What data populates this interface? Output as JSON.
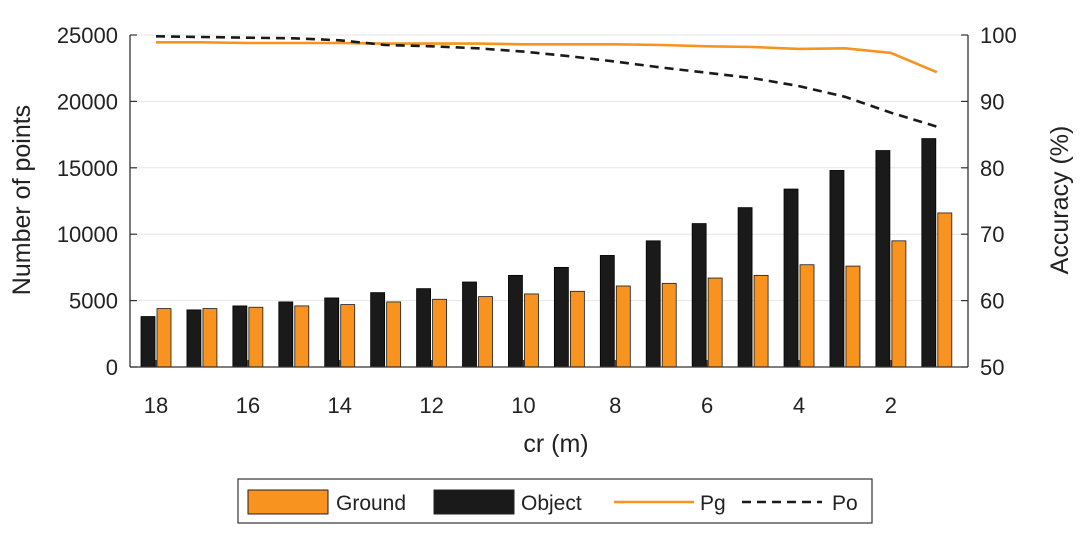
{
  "chart_data": {
    "type": "bar",
    "xlabel": "cr (m)",
    "ylabel_left": "Number of points",
    "ylabel_right": "Accuracy (%)",
    "x": [
      18,
      17,
      16,
      15,
      14,
      13,
      12,
      11,
      10,
      9,
      8,
      7,
      6,
      5,
      4,
      3,
      2,
      1
    ],
    "x_tick_labels": [
      "18",
      "16",
      "14",
      "12",
      "10",
      "8",
      "6",
      "4",
      "2"
    ],
    "x_tick_values": [
      18,
      16,
      14,
      12,
      10,
      8,
      6,
      4,
      2
    ],
    "ylim_left": [
      0,
      25000
    ],
    "yticks_left": [
      "0",
      "5000",
      "10000",
      "15000",
      "20000",
      "25000"
    ],
    "ytick_values_left": [
      0,
      5000,
      10000,
      15000,
      20000,
      25000
    ],
    "ylim_right": [
      50,
      100
    ],
    "yticks_right": [
      "50",
      "60",
      "70",
      "80",
      "90",
      "100"
    ],
    "ytick_values_right": [
      50,
      60,
      70,
      80,
      90,
      100
    ],
    "grid": "horizontal",
    "legend_position": "bottom",
    "colors": {
      "ground": "#f7931e",
      "object": "#1a1a1a",
      "pg": "#f7931e",
      "po": "#1a1a1a",
      "grid": "#e6e6e6",
      "axis": "#333333"
    },
    "series": [
      {
        "name": "Ground",
        "type": "bar",
        "axis": "left",
        "values": [
          4400,
          4400,
          4500,
          4600,
          4700,
          4900,
          5100,
          5300,
          5500,
          5700,
          6100,
          6300,
          6700,
          6900,
          7700,
          7600,
          9500,
          11600
        ]
      },
      {
        "name": "Object",
        "type": "bar",
        "axis": "left",
        "values": [
          3800,
          4300,
          4600,
          4900,
          5200,
          5600,
          5900,
          6400,
          6900,
          7500,
          8400,
          9500,
          10800,
          12000,
          13400,
          14800,
          16300,
          17200
        ]
      },
      {
        "name": "Pg",
        "type": "line",
        "axis": "right",
        "values": [
          98.9,
          98.9,
          98.8,
          98.8,
          98.8,
          98.7,
          98.7,
          98.7,
          98.6,
          98.6,
          98.6,
          98.5,
          98.3,
          98.2,
          97.9,
          98.0,
          97.3,
          94.4
        ]
      },
      {
        "name": "Po",
        "type": "line",
        "axis": "right",
        "values": [
          99.8,
          99.7,
          99.6,
          99.5,
          99.2,
          98.5,
          98.3,
          98.0,
          97.5,
          96.8,
          96.0,
          95.1,
          94.3,
          93.5,
          92.3,
          90.7,
          88.3,
          86.2
        ]
      }
    ]
  }
}
